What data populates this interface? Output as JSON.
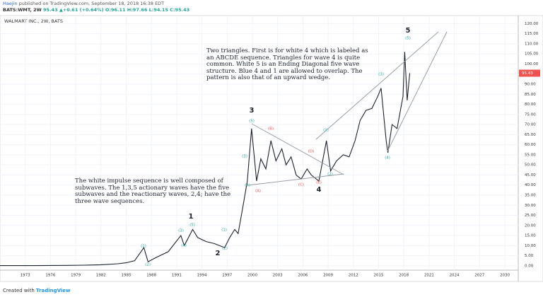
{
  "header": {
    "author": "Haejin",
    "published": " published on TradingView.com, September 18, 2018 16:38 EDT"
  },
  "quote": {
    "symbol": "BATS:WMT, 2W",
    "price": "95.43",
    "change": "▲+0.61 (+0.64%)",
    "ohlc": "O:96.11 H:97.66 L:94.15 C:95.43"
  },
  "footer": {
    "created": "Created with",
    "brand": "TradingView"
  },
  "chart_data": {
    "type": "line",
    "title": "WALMART INC., 2W, BATS",
    "x": [
      1970,
      1972,
      1974,
      1976,
      1978,
      1980,
      1982,
      1984,
      1985,
      1986,
      1987.1,
      1987.6,
      1988.5,
      1990,
      1991.5,
      1991.9,
      1992.9,
      1993.5,
      1994.5,
      1995.5,
      1996.7,
      1997.3,
      1997.9,
      1998.3,
      1998.9,
      1999.4,
      1999.9,
      2000.5,
      2001,
      2001.6,
      2002.2,
      2002.8,
      2003.5,
      2004,
      2004.6,
      2005.2,
      2005.8,
      2006.5,
      2007,
      2007.9,
      2008.8,
      2009.3,
      2010,
      2010.8,
      2011.5,
      2012.2,
      2012.8,
      2013.5,
      2014.2,
      2014.9,
      2015.3,
      2015.9,
      2016.1,
      2016.6,
      2017.2,
      2017.9,
      2018.1,
      2018.4,
      2018.7
    ],
    "series": [
      {
        "name": "WMT",
        "color": "#1e222d",
        "values": [
          0.1,
          0.1,
          0.1,
          0.15,
          0.2,
          0.3,
          0.5,
          1,
          1.5,
          2.5,
          9,
          2,
          4,
          7,
          15,
          10,
          18,
          14,
          12,
          11,
          9,
          14,
          18,
          16,
          30,
          42,
          68,
          42,
          53,
          48,
          62,
          52,
          58,
          50,
          54,
          45,
          43,
          48,
          45,
          42,
          62,
          47,
          52,
          55,
          54,
          62,
          72,
          77,
          78,
          84,
          88,
          62,
          56,
          70,
          68,
          84,
          106,
          82,
          95.43
        ]
      }
    ],
    "last_price": 95.43,
    "xlim": [
      1970,
      2031.6
    ],
    "ylim": [
      -6,
      124
    ],
    "xticks": [
      1973,
      1976,
      1979,
      1982,
      1985,
      1988,
      1991,
      1994,
      1997,
      2000,
      2003,
      2006,
      2009,
      2012,
      2015,
      2018,
      2021,
      2024,
      2027,
      2030
    ],
    "yticks": [
      {
        "value": 0,
        "label": "0.00"
      },
      {
        "value": 5,
        "label": "5.00"
      },
      {
        "value": 10,
        "label": "10.00"
      },
      {
        "value": 15,
        "label": "15.00"
      },
      {
        "value": 20,
        "label": "20.00"
      },
      {
        "value": 25,
        "label": "25.00"
      },
      {
        "value": 30,
        "label": "30.00"
      },
      {
        "value": 35,
        "label": "35.00"
      },
      {
        "value": 40,
        "label": "40.00"
      },
      {
        "value": 45,
        "label": "45.00"
      },
      {
        "value": 50,
        "label": "50.00"
      },
      {
        "value": 55,
        "label": "55.00"
      },
      {
        "value": 60,
        "label": "60.00"
      },
      {
        "value": 65,
        "label": "65.00"
      },
      {
        "value": 70,
        "label": "70.00"
      },
      {
        "value": 75,
        "label": "75.00"
      },
      {
        "value": 80,
        "label": "80.00"
      },
      {
        "value": 85,
        "label": "85.00"
      },
      {
        "value": 90,
        "label": "90.00"
      },
      {
        "value": 95,
        "label": "95.00"
      },
      {
        "value": 100,
        "label": "100.00"
      },
      {
        "value": 105,
        "label": "105.00"
      },
      {
        "value": 110,
        "label": "110.00"
      },
      {
        "value": 115,
        "label": "115.00"
      },
      {
        "value": 120,
        "label": "120.00"
      }
    ],
    "grid": true,
    "wave_labels": [
      {
        "text": "(1)",
        "color": "#26a69a"
      },
      {
        "text": "(2)",
        "color": "#26a69a"
      },
      {
        "text": "(3)",
        "color": "#26a69a"
      },
      {
        "text": "(4)",
        "color": "#26a69a"
      },
      {
        "text": "(5)",
        "color": "#26a69a"
      },
      {
        "text": "1",
        "color": "#1e222d"
      },
      {
        "text": "(1)",
        "color": "#26a69a"
      },
      {
        "text": "(2)",
        "color": "#26a69a"
      },
      {
        "text": "2",
        "color": "#1e222d"
      },
      {
        "text": "(3)",
        "color": "#26a69a"
      },
      {
        "text": "(4)",
        "color": "#26a69a"
      },
      {
        "text": "(5)",
        "color": "#26a69a"
      },
      {
        "text": "3",
        "color": "#1e222d"
      },
      {
        "text": "(A)",
        "color": "#ef5350"
      },
      {
        "text": "(B)",
        "color": "#ef5350"
      },
      {
        "text": "(C)",
        "color": "#ef5350"
      },
      {
        "text": "(D)",
        "color": "#ef5350"
      },
      {
        "text": "(E)",
        "color": "#ef5350"
      },
      {
        "text": "4",
        "color": "#1e222d"
      },
      {
        "text": "(1)",
        "color": "#26a69a"
      },
      {
        "text": "(2)",
        "color": "#26a69a"
      },
      {
        "text": "(3)",
        "color": "#26a69a"
      },
      {
        "text": "(4)",
        "color": "#26a69a"
      },
      {
        "text": "(5)",
        "color": "#26a69a"
      },
      {
        "text": "5",
        "color": "#1e222d"
      }
    ],
    "notes": [
      "Two triangles. First is for white 4 which is labeled as an ABCDE sequence. Triangles for wave 4 is quite common. White 5 is an Ending Diagonal five wave structure. Blue 4 and 1 are allowed to overlap. The pattern is also that of an upward wedge.",
      "The white impulse sequence is well composed of subwaves. The 1,3,5 actionary waves have the five subwaves and the reactionary waves, 2,4; have the three wave sequences."
    ]
  }
}
